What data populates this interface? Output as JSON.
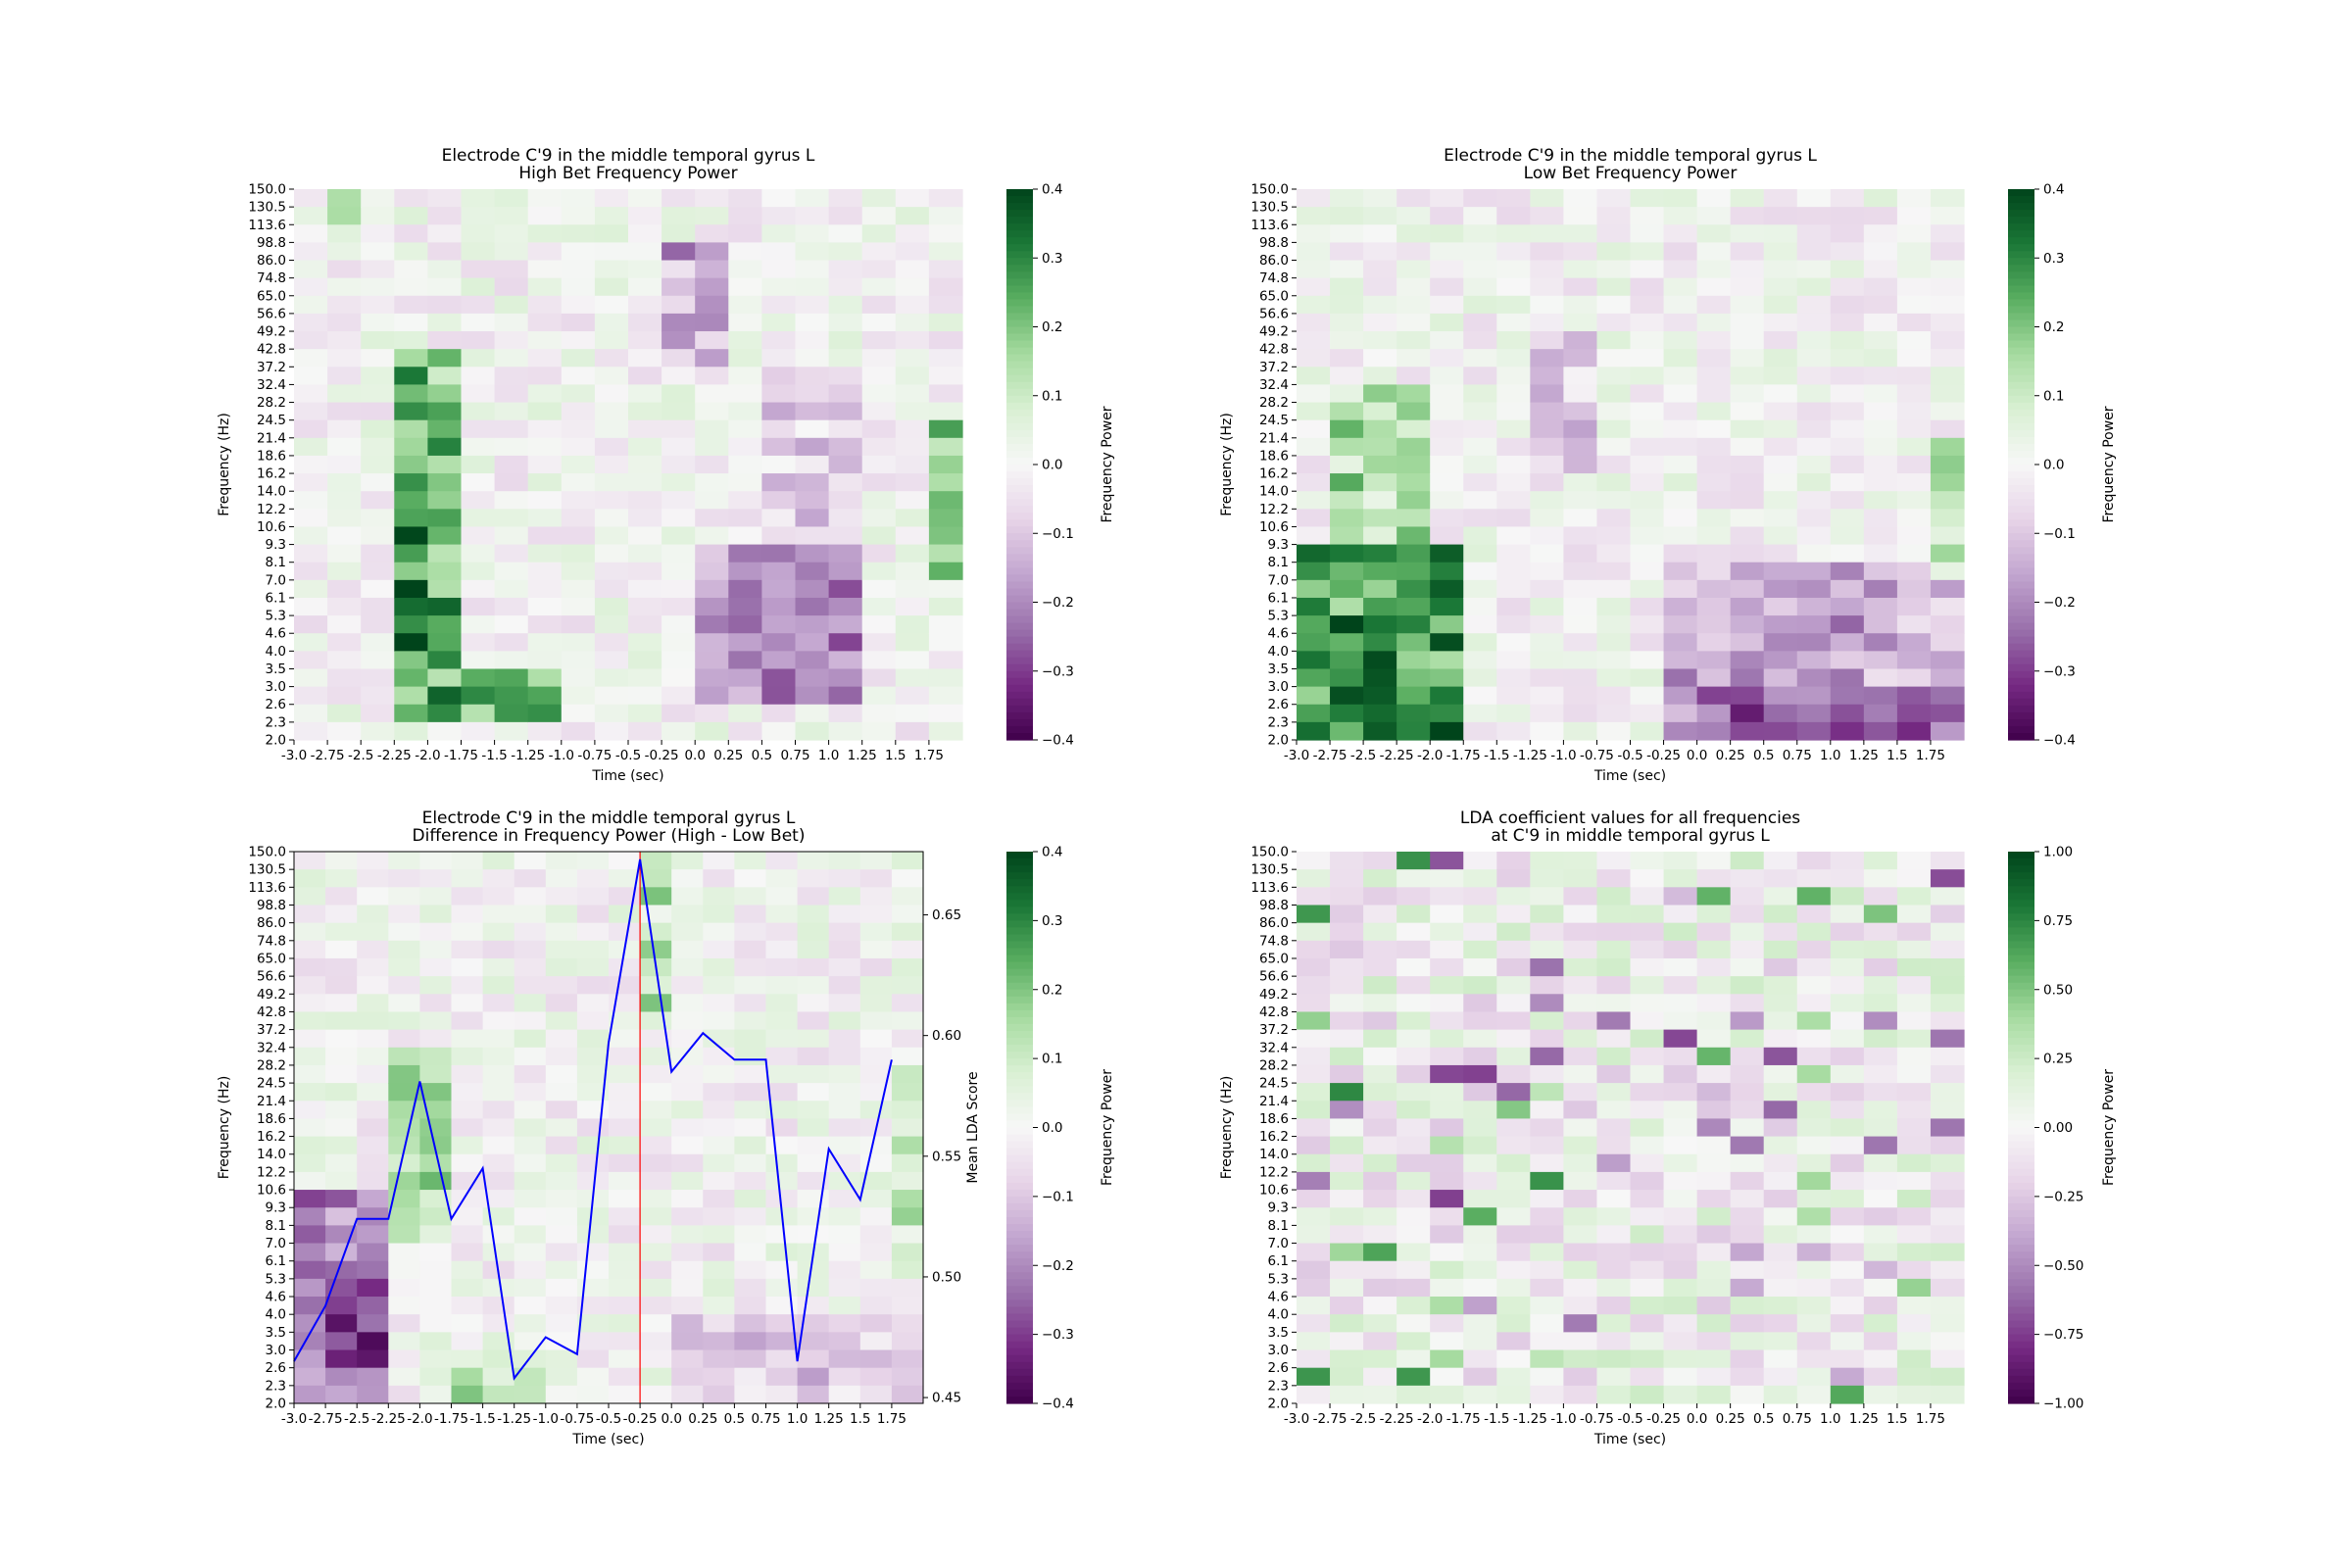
{
  "chart_data": [
    {
      "type": "heatmap",
      "title": [
        "Electrode C'9 in the middle temporal gyrus L",
        "High Bet Frequency Power"
      ],
      "xlabel": "Time (sec)",
      "ylabel": "Frequency (Hz)",
      "x_ticks": [
        "-3.0",
        "-2.75",
        "-2.5",
        "-2.25",
        "-2.0",
        "-1.75",
        "-1.5",
        "-1.25",
        "-1.0",
        "-0.75",
        "-0.5",
        "-0.25",
        "0.0",
        "0.25",
        "0.5",
        "0.75",
        "1.0",
        "1.25",
        "1.5",
        "1.75"
      ],
      "y_ticks": [
        "150.0",
        "130.5",
        "113.6",
        "98.8",
        "86.0",
        "74.8",
        "65.0",
        "56.6",
        "49.2",
        "42.8",
        "37.2",
        "32.4",
        "28.2",
        "24.5",
        "21.4",
        "18.6",
        "16.2",
        "14.0",
        "12.2",
        "10.6",
        "9.3",
        "8.1",
        "7.0",
        "6.1",
        "5.3",
        "4.6",
        "4.0",
        "3.5",
        "3.0",
        "2.6",
        "2.3",
        "2.0"
      ],
      "colorbar": {
        "label": "Frequency Power",
        "ticks": [
          "0.4",
          "0.3",
          "0.2",
          "0.1",
          "0.0",
          "−0.1",
          "−0.2",
          "−0.3",
          "−0.4"
        ],
        "vmin": -0.4,
        "vmax": 0.4
      },
      "n_cols": 20,
      "n_rows": 31,
      "matrix_seed": 17,
      "features": [
        {
          "c0": 3,
          "c1": 4.6,
          "r0": 9,
          "r1": 30,
          "amp": 0.24
        },
        {
          "c0": 3.3,
          "c1": 4.3,
          "r0": 19,
          "r1": 26,
          "amp": 0.16
        },
        {
          "c0": 4.6,
          "c1": 8,
          "r0": 27,
          "r1": 30,
          "amp": 0.24
        },
        {
          "c0": 12,
          "c1": 16.5,
          "r0": 20,
          "r1": 29,
          "amp": -0.2
        },
        {
          "c0": 11,
          "c1": 13,
          "r0": 3,
          "r1": 10,
          "amp": -0.16
        },
        {
          "c0": 19,
          "c1": 20,
          "r0": 13,
          "r1": 22,
          "amp": 0.22
        },
        {
          "c0": 1,
          "c1": 2,
          "r0": 0,
          "r1": 4,
          "amp": 0.12
        },
        {
          "c0": 14,
          "c1": 17,
          "r0": 10,
          "r1": 20,
          "amp": -0.1
        }
      ]
    },
    {
      "type": "heatmap",
      "title": [
        "Electrode C'9 in the middle temporal gyrus L",
        "Low Bet Frequency Power"
      ],
      "xlabel": "Time (sec)",
      "ylabel": "Frequency (Hz)",
      "x_ticks": [
        "-3.0",
        "-2.75",
        "-2.5",
        "-2.25",
        "-2.0",
        "-1.75",
        "-1.5",
        "-1.25",
        "-1.0",
        "-0.75",
        "-0.5",
        "-0.25",
        "0.0",
        "0.25",
        "0.5",
        "0.75",
        "1.0",
        "1.25",
        "1.5",
        "1.75"
      ],
      "y_ticks": [
        "150.0",
        "130.5",
        "113.6",
        "98.8",
        "86.0",
        "74.8",
        "65.0",
        "56.6",
        "49.2",
        "42.8",
        "37.2",
        "32.4",
        "28.2",
        "24.5",
        "21.4",
        "18.6",
        "16.2",
        "14.0",
        "12.2",
        "10.6",
        "9.3",
        "8.1",
        "7.0",
        "6.1",
        "5.3",
        "4.6",
        "4.0",
        "3.5",
        "3.0",
        "2.6",
        "2.3",
        "2.0"
      ],
      "colorbar": {
        "label": "Frequency Power",
        "ticks": [
          "0.4",
          "0.3",
          "0.2",
          "0.1",
          "0.0",
          "−0.1",
          "−0.2",
          "−0.3",
          "−0.4"
        ],
        "vmin": -0.4,
        "vmax": 0.4
      },
      "n_cols": 20,
      "n_rows": 31,
      "matrix_seed": 29,
      "features": [
        {
          "c0": 0,
          "c1": 5,
          "r0": 20,
          "r1": 31,
          "amp": 0.3
        },
        {
          "c0": 0.8,
          "c1": 3.5,
          "r0": 11,
          "r1": 20,
          "amp": 0.16
        },
        {
          "c0": 11,
          "c1": 20,
          "r0": 21,
          "r1": 31,
          "amp": -0.16
        },
        {
          "c0": 12,
          "c1": 20,
          "r0": 28,
          "r1": 31,
          "amp": -0.12
        },
        {
          "c0": 7,
          "c1": 9,
          "r0": 8,
          "r1": 16,
          "amp": -0.12
        },
        {
          "c0": 19,
          "c1": 20,
          "r0": 14,
          "r1": 22,
          "amp": 0.12
        }
      ]
    },
    {
      "type": "heatmap",
      "title": [
        "Electrode C'9 in the middle temporal gyrus L",
        "Difference in Frequency Power (High - Low Bet)"
      ],
      "xlabel": "Time (sec)",
      "ylabel": "Frequency (Hz)",
      "y2label": "Mean LDA Score",
      "x_ticks": [
        "-3.0",
        "-2.75",
        "-2.5",
        "-2.25",
        "-2.0",
        "-1.75",
        "-1.5",
        "-1.25",
        "-1.0",
        "-0.75",
        "-0.5",
        "-0.25",
        "0.0",
        "0.25",
        "0.5",
        "0.75",
        "1.0",
        "1.25",
        "1.5",
        "1.75"
      ],
      "y_ticks": [
        "150.0",
        "130.5",
        "113.6",
        "98.8",
        "86.0",
        "74.8",
        "65.0",
        "56.6",
        "49.2",
        "42.8",
        "37.2",
        "32.4",
        "28.2",
        "24.5",
        "21.4",
        "18.6",
        "16.2",
        "14.0",
        "12.2",
        "10.6",
        "9.3",
        "8.1",
        "7.0",
        "6.1",
        "5.3",
        "4.6",
        "4.0",
        "3.5",
        "3.0",
        "2.6",
        "2.3",
        "2.0"
      ],
      "y2_ticks": [
        "0.65",
        "0.60",
        "0.55",
        "0.50",
        "0.45"
      ],
      "y2_tick_values": [
        0.65,
        0.6,
        0.55,
        0.5,
        0.45
      ],
      "y2_range": [
        0.4476,
        0.6762
      ],
      "colorbar": {
        "label": "Frequency Power",
        "ticks": [
          "0.4",
          "0.3",
          "0.2",
          "0.1",
          "0.0",
          "−0.1",
          "−0.2",
          "−0.3",
          "−0.4"
        ],
        "vmin": -0.4,
        "vmax": 0.4
      },
      "n_cols": 20,
      "n_rows": 31,
      "matrix_seed": 41,
      "features": [
        {
          "c0": 0,
          "c1": 3,
          "r0": 19,
          "r1": 31,
          "amp": -0.2
        },
        {
          "c0": 1,
          "c1": 2.5,
          "r0": 24,
          "r1": 30,
          "amp": -0.15
        },
        {
          "c0": 3,
          "c1": 4.5,
          "r0": 11,
          "r1": 22,
          "amp": 0.18
        },
        {
          "c0": 11,
          "c1": 12,
          "r0": 0,
          "r1": 10,
          "amp": 0.14
        },
        {
          "c0": 12,
          "c1": 20,
          "r0": 26,
          "r1": 31,
          "amp": -0.1
        },
        {
          "c0": 5,
          "c1": 9,
          "r0": 28,
          "r1": 31,
          "amp": 0.12
        },
        {
          "c0": 19,
          "c1": 20,
          "r0": 12,
          "r1": 24,
          "amp": 0.1
        }
      ],
      "lda_x": [
        -3.0,
        -2.75,
        -2.5,
        -2.25,
        -2.0,
        -1.875,
        -1.75,
        -1.625,
        -1.5,
        -1.375,
        -1.25,
        -1.125,
        -1.0,
        -0.875,
        -0.75,
        -0.625,
        -0.5,
        -0.375,
        -0.25,
        -0.125,
        0.0,
        0.125,
        0.25,
        0.375,
        0.5,
        0.625,
        0.75,
        0.875,
        1.0,
        1.125,
        1.25,
        1.375,
        1.5,
        1.625,
        1.75,
        1.875
      ],
      "lda_y": [
        0.465,
        0.488,
        0.524,
        0.524,
        0.581,
        0.524,
        0.545,
        0.458,
        0.475,
        0.468,
        0.597,
        0.673,
        0.585,
        0.601,
        0.59,
        0.59,
        0.465,
        0.553,
        0.532,
        0.59
      ],
      "lda_x_index": [
        0,
        1,
        2,
        3,
        4,
        5,
        6,
        7,
        8,
        9,
        10,
        11,
        12,
        13,
        14,
        15,
        16,
        17,
        18,
        19
      ],
      "event_time": "-0.25",
      "line_color": "#0000ff",
      "event_color": "#ff0000"
    },
    {
      "type": "heatmap",
      "title": [
        "LDA coefficient values for all frequencies",
        "at C'9 in middle temporal gyrus L"
      ],
      "xlabel": "Time (sec)",
      "ylabel": "Frequency (Hz)",
      "x_ticks": [
        "-3.0",
        "-2.75",
        "-2.5",
        "-2.25",
        "-2.0",
        "-1.75",
        "-1.5",
        "-1.25",
        "-1.0",
        "-0.75",
        "-0.5",
        "-0.25",
        "0.0",
        "0.25",
        "0.5",
        "0.75",
        "1.0",
        "1.25",
        "1.5",
        "1.75"
      ],
      "y_ticks": [
        "150.0",
        "130.5",
        "113.6",
        "98.8",
        "86.0",
        "74.8",
        "65.0",
        "56.6",
        "49.2",
        "42.8",
        "37.2",
        "32.4",
        "28.2",
        "24.5",
        "21.4",
        "18.6",
        "16.2",
        "14.0",
        "12.2",
        "10.6",
        "9.3",
        "8.1",
        "7.0",
        "6.1",
        "5.3",
        "4.6",
        "4.0",
        "3.5",
        "3.0",
        "2.6",
        "2.3",
        "2.0"
      ],
      "colorbar": {
        "label": "Frequency Power",
        "ticks": [
          "1.00",
          "0.75",
          "0.50",
          "0.25",
          "0.00",
          "−0.25",
          "−0.50",
          "−0.75",
          "−1.00"
        ],
        "vmin": -1.0,
        "vmax": 1.0
      },
      "n_cols": 20,
      "n_rows": 31,
      "matrix_seed": 57,
      "noise_only": true
    }
  ],
  "colormap": "PRGn",
  "colormap_stops": [
    "#40004b",
    "#762a83",
    "#9970ab",
    "#c2a5cf",
    "#e7d4e8",
    "#f7f7f7",
    "#d9f0d3",
    "#a6dba0",
    "#5aae61",
    "#1b7837",
    "#00441b"
  ]
}
